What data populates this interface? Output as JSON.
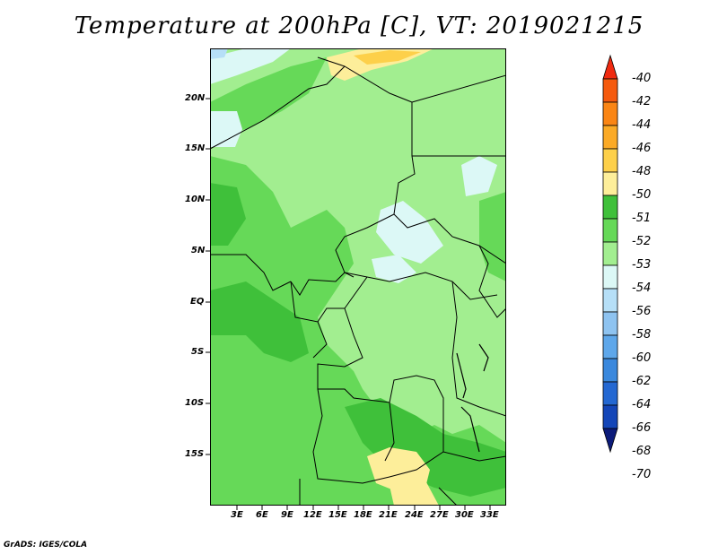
{
  "title": "Temperature at 200hPa [C], VT: 2019021215",
  "credit": "GrADS: IGES/COLA",
  "lat_labels": [
    "20N",
    "15N",
    "10N",
    "5N",
    "EQ",
    "5S",
    "10S",
    "15S"
  ],
  "lon_labels": [
    "3E",
    "6E",
    "9E",
    "12E",
    "15E",
    "18E",
    "21E",
    "24E",
    "27E",
    "30E",
    "33E"
  ],
  "legend": {
    "labels": [
      "-40",
      "-42",
      "-44",
      "-46",
      "-48",
      "-50",
      "-51",
      "-52",
      "-53",
      "-54",
      "-56",
      "-58",
      "-60",
      "-62",
      "-64",
      "-66",
      "-68",
      "-70"
    ],
    "colors": [
      "#f02a10",
      "#f55a0e",
      "#fa8514",
      "#fbaa26",
      "#fdd04a",
      "#fdee9a",
      "#3fc03a",
      "#66d958",
      "#a2ee90",
      "#dcf8f6",
      "#b6dff7",
      "#8ec3f0",
      "#5ea7ea",
      "#3a88dd",
      "#2468d2",
      "#1446b8",
      "#0c1b7a"
    ]
  },
  "map_colors": {
    "-53": "#a2ee90",
    "-52": "#66d958",
    "-51": "#3fc03a",
    "-54": "#dcf8f6",
    "-56": "#b6dff7",
    "-50": "#fdee9a",
    "-48": "#fdd04a"
  }
}
